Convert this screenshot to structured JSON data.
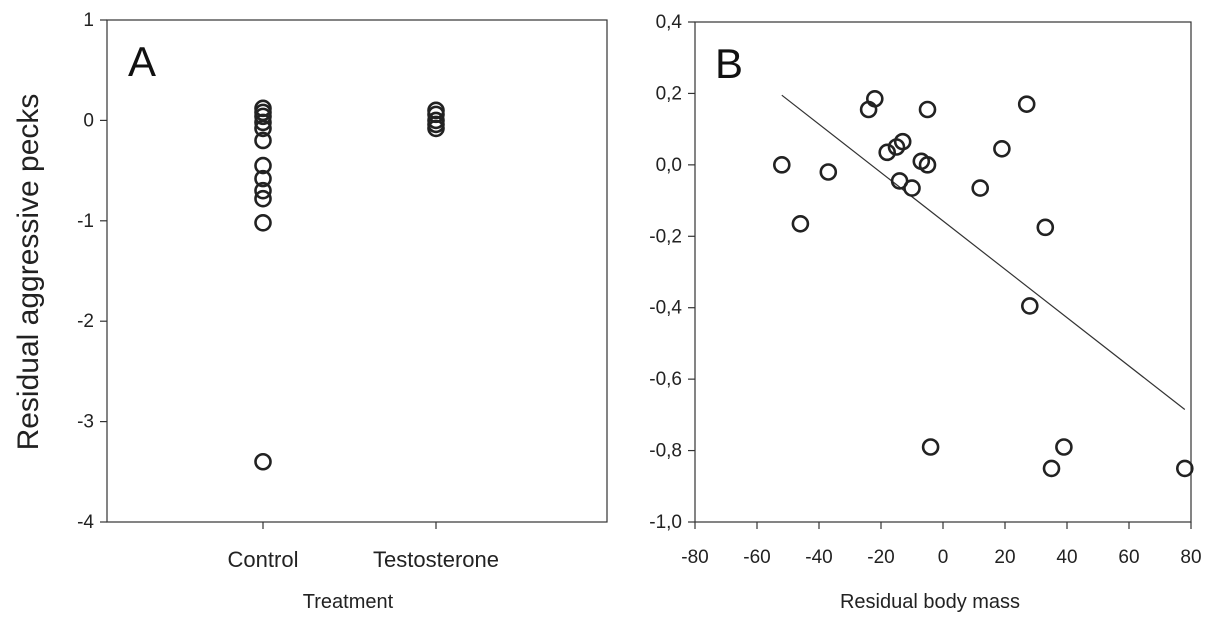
{
  "chart_data": [
    {
      "panel": "A",
      "type": "scatter",
      "title": "",
      "ylabel": "Residual aggressive pecks",
      "xlabel": "Treatment",
      "categories": [
        "Control",
        "Testosterone"
      ],
      "ylim": [
        -4,
        1
      ],
      "yticks": [
        "1",
        "0",
        "-1",
        "-2",
        "-3",
        "-4"
      ],
      "series": [
        {
          "values": [
            {
              "category": "Control",
              "y": 0.12
            },
            {
              "category": "Control",
              "y": 0.08
            },
            {
              "category": "Control",
              "y": 0.04
            },
            {
              "category": "Control",
              "y": -0.02
            },
            {
              "category": "Control",
              "y": -0.08
            },
            {
              "category": "Control",
              "y": -0.2
            },
            {
              "category": "Control",
              "y": -0.45
            },
            {
              "category": "Control",
              "y": -0.58
            },
            {
              "category": "Control",
              "y": -0.7
            },
            {
              "category": "Control",
              "y": -0.78
            },
            {
              "category": "Control",
              "y": -1.02
            },
            {
              "category": "Control",
              "y": -3.4
            },
            {
              "category": "Testosterone",
              "y": 0.1
            },
            {
              "category": "Testosterone",
              "y": 0.06
            },
            {
              "category": "Testosterone",
              "y": 0.0
            },
            {
              "category": "Testosterone",
              "y": -0.04
            },
            {
              "category": "Testosterone",
              "y": -0.08
            }
          ]
        }
      ],
      "grid": false,
      "legend": "none"
    },
    {
      "panel": "B",
      "type": "scatter",
      "title": "",
      "xlabel": "Residual body mass",
      "ylabel": "",
      "xlim": [
        -80,
        80
      ],
      "ylim": [
        -1.0,
        0.4
      ],
      "xticks": [
        "-80",
        "-60",
        "-40",
        "-20",
        "0",
        "20",
        "40",
        "60",
        "80"
      ],
      "yticks": [
        "0,4",
        "0,2",
        "0,0",
        "-0,2",
        "-0,4",
        "-0,6",
        "-0,8",
        "-1,0"
      ],
      "series": [
        {
          "points": [
            {
              "x": -52,
              "y": 0.0
            },
            {
              "x": -46,
              "y": -0.165
            },
            {
              "x": -37,
              "y": -0.02
            },
            {
              "x": -24,
              "y": 0.155
            },
            {
              "x": -22,
              "y": 0.185
            },
            {
              "x": -18,
              "y": 0.035
            },
            {
              "x": -15,
              "y": 0.05
            },
            {
              "x": -13,
              "y": 0.065
            },
            {
              "x": -14,
              "y": -0.045
            },
            {
              "x": -10,
              "y": -0.065
            },
            {
              "x": -7,
              "y": 0.01
            },
            {
              "x": -5,
              "y": 0.0
            },
            {
              "x": -5,
              "y": 0.155
            },
            {
              "x": -4,
              "y": -0.79
            },
            {
              "x": 12,
              "y": -0.065
            },
            {
              "x": 19,
              "y": 0.045
            },
            {
              "x": 27,
              "y": 0.17
            },
            {
              "x": 28,
              "y": -0.395
            },
            {
              "x": 33,
              "y": -0.175
            },
            {
              "x": 35,
              "y": -0.85
            },
            {
              "x": 39,
              "y": -0.79
            },
            {
              "x": 78,
              "y": -0.85
            }
          ]
        }
      ],
      "fit_line": {
        "x": [
          -52,
          78
        ],
        "y": [
          0.195,
          -0.685
        ]
      },
      "grid": false,
      "legend": "none"
    }
  ],
  "panels": {
    "a_letter": "A",
    "b_letter": "B"
  }
}
